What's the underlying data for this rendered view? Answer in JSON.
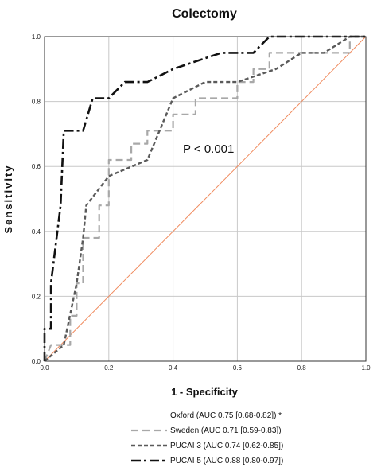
{
  "chart_data": {
    "type": "line",
    "title": "Colectomy",
    "xlabel": "1 - Specificity",
    "ylabel": "Sensitivity",
    "xlim": [
      0,
      1
    ],
    "ylim": [
      0,
      1
    ],
    "x_ticks": [
      "0.0",
      "0.2",
      "0.4",
      "0.6",
      "0.8",
      "1.0"
    ],
    "y_ticks": [
      "0.0",
      "0.2",
      "0.4",
      "0.6",
      "0.8",
      "1.0"
    ],
    "grid": true,
    "annotation": "P < 0.001",
    "reference_line": {
      "x": [
        0,
        1
      ],
      "y": [
        0,
        1
      ],
      "color": "#f08a5d"
    },
    "series": [
      {
        "name": "Oxford   (AUC 0.75 [0.68-0.82]) *",
        "style": "none",
        "color": "#111111",
        "points": []
      },
      {
        "name": "Sweden (AUC 0.71 [0.59-0.83])",
        "style": "long-dash",
        "color": "#a8a8a8",
        "points": [
          [
            0,
            0
          ],
          [
            0.02,
            0.05
          ],
          [
            0.08,
            0.05
          ],
          [
            0.08,
            0.14
          ],
          [
            0.1,
            0.14
          ],
          [
            0.1,
            0.24
          ],
          [
            0.12,
            0.24
          ],
          [
            0.12,
            0.38
          ],
          [
            0.17,
            0.38
          ],
          [
            0.17,
            0.48
          ],
          [
            0.2,
            0.48
          ],
          [
            0.2,
            0.62
          ],
          [
            0.27,
            0.62
          ],
          [
            0.27,
            0.67
          ],
          [
            0.32,
            0.67
          ],
          [
            0.32,
            0.71
          ],
          [
            0.4,
            0.71
          ],
          [
            0.4,
            0.76
          ],
          [
            0.47,
            0.76
          ],
          [
            0.47,
            0.81
          ],
          [
            0.6,
            0.81
          ],
          [
            0.6,
            0.86
          ],
          [
            0.65,
            0.86
          ],
          [
            0.65,
            0.9
          ],
          [
            0.7,
            0.9
          ],
          [
            0.7,
            0.95
          ],
          [
            0.8,
            0.95
          ],
          [
            0.95,
            0.95
          ],
          [
            0.95,
            1.0
          ],
          [
            1.0,
            1.0
          ]
        ]
      },
      {
        "name": "PUCAI 3 (AUC 0.74 [0.62-0.85])",
        "style": "short-dash",
        "color": "#5a5a5a",
        "points": [
          [
            0,
            0
          ],
          [
            0.06,
            0.05
          ],
          [
            0.1,
            0.24
          ],
          [
            0.12,
            0.38
          ],
          [
            0.13,
            0.48
          ],
          [
            0.2,
            0.57
          ],
          [
            0.32,
            0.62
          ],
          [
            0.4,
            0.81
          ],
          [
            0.5,
            0.86
          ],
          [
            0.6,
            0.86
          ],
          [
            0.72,
            0.9
          ],
          [
            0.8,
            0.95
          ],
          [
            0.87,
            0.95
          ],
          [
            0.95,
            1.0
          ],
          [
            1.0,
            1.0
          ]
        ]
      },
      {
        "name": "PUCAI 5 (AUC 0.88 [0.80-0.97])",
        "style": "dash-dot",
        "color": "#111111",
        "points": [
          [
            0,
            0
          ],
          [
            0,
            0.1
          ],
          [
            0.02,
            0.1
          ],
          [
            0.02,
            0.24
          ],
          [
            0.05,
            0.48
          ],
          [
            0.06,
            0.71
          ],
          [
            0.08,
            0.71
          ],
          [
            0.12,
            0.71
          ],
          [
            0.15,
            0.81
          ],
          [
            0.2,
            0.81
          ],
          [
            0.25,
            0.86
          ],
          [
            0.32,
            0.86
          ],
          [
            0.4,
            0.9
          ],
          [
            0.55,
            0.95
          ],
          [
            0.62,
            0.95
          ],
          [
            0.65,
            0.95
          ],
          [
            0.7,
            1.0
          ],
          [
            1.0,
            1.0
          ]
        ]
      }
    ]
  }
}
